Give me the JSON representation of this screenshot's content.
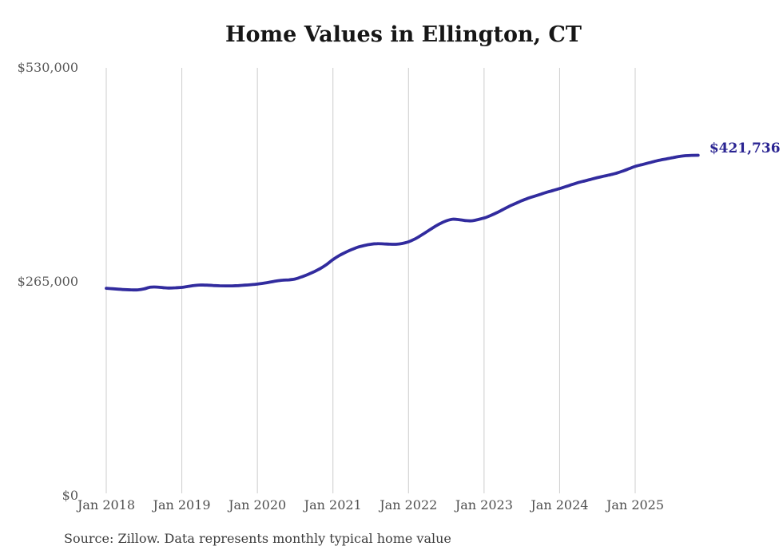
{
  "chart_data": {
    "type": "line",
    "title": "Home Values in Ellington, CT",
    "source": "Source: Zillow. Data represents monthly typical home value",
    "series_name": "Monthly typical home value",
    "end_annotation": "$421,736",
    "final_value": 421736,
    "ylim": [
      0,
      530000
    ],
    "grid": "vertical-only",
    "legend": "none",
    "line_color": "#312b9e",
    "annotation_color": "#2a2492",
    "grid_color": "#cccccc",
    "y_ticks": [
      {
        "label": "$0",
        "value": 0
      },
      {
        "label": "$265,000",
        "value": 265000
      },
      {
        "label": "$530,000",
        "value": 530000
      }
    ],
    "x_ticks": [
      {
        "label": "Jan 2018",
        "index": 0
      },
      {
        "label": "Jan 2019",
        "index": 12
      },
      {
        "label": "Jan 2020",
        "index": 24
      },
      {
        "label": "Jan 2021",
        "index": 36
      },
      {
        "label": "Jan 2022",
        "index": 48
      },
      {
        "label": "Jan 2023",
        "index": 60
      },
      {
        "label": "Jan 2024",
        "index": 72
      },
      {
        "label": "Jan 2025",
        "index": 84
      }
    ],
    "x": [
      "2018-01",
      "2018-02",
      "2018-03",
      "2018-04",
      "2018-05",
      "2018-06",
      "2018-07",
      "2018-08",
      "2018-09",
      "2018-10",
      "2018-11",
      "2018-12",
      "2019-01",
      "2019-02",
      "2019-03",
      "2019-04",
      "2019-05",
      "2019-06",
      "2019-07",
      "2019-08",
      "2019-09",
      "2019-10",
      "2019-11",
      "2019-12",
      "2020-01",
      "2020-02",
      "2020-03",
      "2020-04",
      "2020-05",
      "2020-06",
      "2020-07",
      "2020-08",
      "2020-09",
      "2020-10",
      "2020-11",
      "2020-12",
      "2021-01",
      "2021-02",
      "2021-03",
      "2021-04",
      "2021-05",
      "2021-06",
      "2021-07",
      "2021-08",
      "2021-09",
      "2021-10",
      "2021-11",
      "2021-12",
      "2022-01",
      "2022-02",
      "2022-03",
      "2022-04",
      "2022-05",
      "2022-06",
      "2022-07",
      "2022-08",
      "2022-09",
      "2022-10",
      "2022-11",
      "2022-12",
      "2023-01",
      "2023-02",
      "2023-03",
      "2023-04",
      "2023-05",
      "2023-06",
      "2023-07",
      "2023-08",
      "2023-09",
      "2023-10",
      "2023-11",
      "2023-12",
      "2024-01",
      "2024-02",
      "2024-03",
      "2024-04",
      "2024-05",
      "2024-06",
      "2024-07",
      "2024-08",
      "2024-09",
      "2024-10",
      "2024-11",
      "2024-12",
      "2025-01",
      "2025-02",
      "2025-03",
      "2025-04",
      "2025-05",
      "2025-06",
      "2025-07",
      "2025-08",
      "2025-09",
      "2025-10",
      "2025-11"
    ],
    "values": [
      257000,
      256400,
      255800,
      255300,
      255000,
      255000,
      256200,
      258300,
      258500,
      257800,
      257300,
      257600,
      258100,
      259300,
      260500,
      261000,
      260800,
      260400,
      260100,
      260000,
      260000,
      260300,
      260800,
      261400,
      262100,
      263200,
      264600,
      266000,
      267000,
      267400,
      268500,
      271000,
      274000,
      277500,
      281500,
      286500,
      292500,
      297500,
      301500,
      305000,
      308000,
      310000,
      311500,
      312200,
      312000,
      311600,
      311500,
      312500,
      314500,
      318000,
      322500,
      327500,
      332500,
      337000,
      340500,
      342500,
      342000,
      340800,
      340500,
      342000,
      344000,
      347000,
      350500,
      354500,
      358500,
      362000,
      365500,
      368500,
      371000,
      373500,
      376000,
      378200,
      380500,
      383000,
      385500,
      388000,
      390000,
      392000,
      394000,
      395800,
      397500,
      399500,
      402000,
      405000,
      408000,
      410000,
      412000,
      414000,
      415800,
      417300,
      418800,
      420200,
      421200,
      421600,
      421736
    ]
  }
}
